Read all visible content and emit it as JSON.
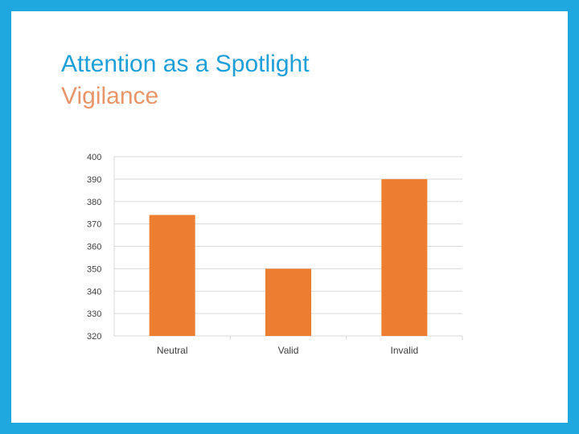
{
  "slide": {
    "title": "Attention as a Spotlight",
    "subtitle": "Vigilance"
  },
  "colors": {
    "frame": "#1fa8e0",
    "title": "#1f9fd8",
    "subtitle": "#e8956a",
    "bar": "#ed7d31",
    "gridline": "#d9d9d9",
    "tick_text": "#404040"
  },
  "chart_data": {
    "type": "bar",
    "categories": [
      "Neutral",
      "Valid",
      "Invalid"
    ],
    "values": [
      374,
      350,
      390
    ],
    "ylim": [
      320,
      400
    ],
    "yticks": [
      320,
      330,
      340,
      350,
      360,
      370,
      380,
      390,
      400
    ],
    "grid": true,
    "legend": "none"
  }
}
